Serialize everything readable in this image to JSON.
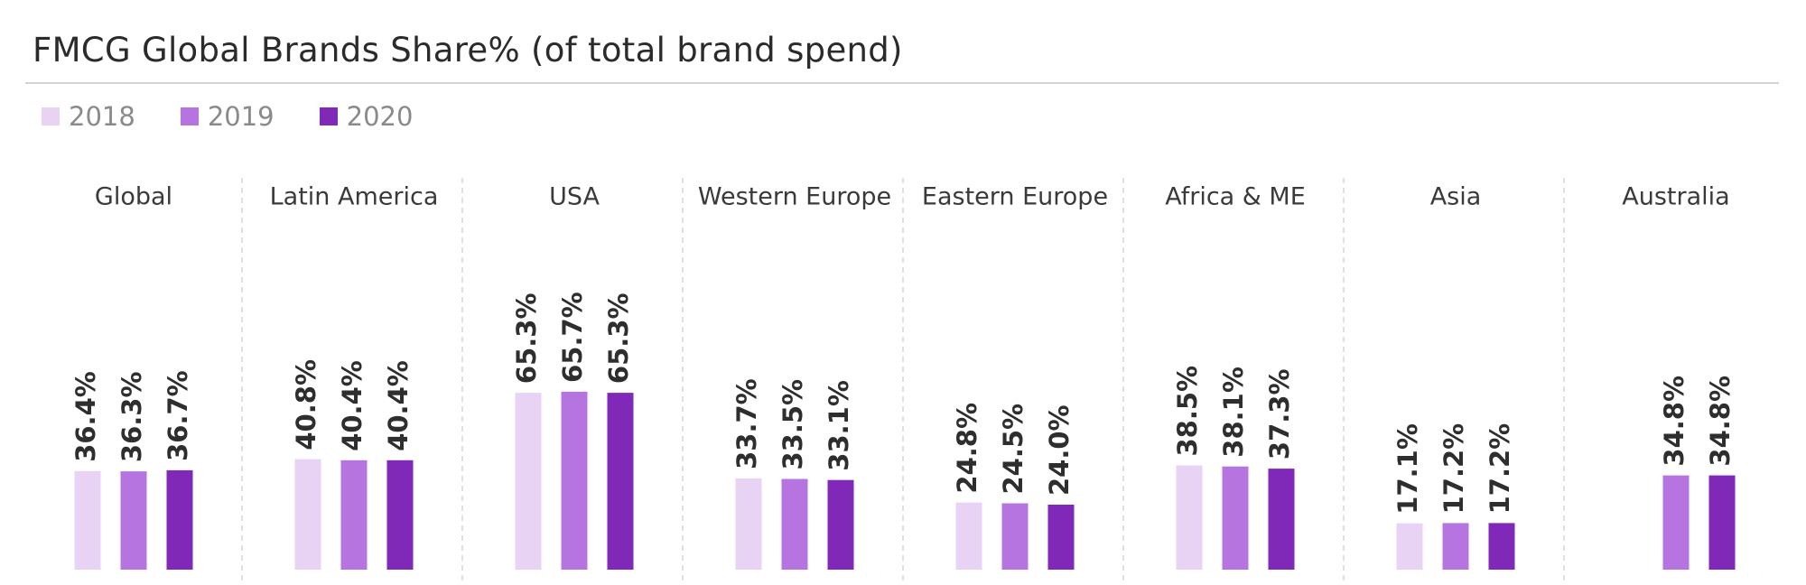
{
  "title": "FMCG Global Brands Share% (of total brand spend)",
  "colors": {
    "2018": "#e8d3f5",
    "2019": "#b574e0",
    "2020": "#8029b8"
  },
  "chart_data": {
    "type": "bar",
    "title": "FMCG Global Brands Share% (of total brand spend)",
    "categories": [
      "Global",
      "Latin America",
      "USA",
      "Western Europe",
      "Eastern Europe",
      "Africa & ME",
      "Asia",
      "Australia"
    ],
    "series": [
      {
        "name": "2018",
        "values": [
          36.4,
          40.8,
          65.3,
          33.7,
          24.8,
          38.5,
          17.1,
          null
        ],
        "labels": [
          "36.4%",
          "40.8%",
          "65.3%",
          "33.7%",
          "24.8%",
          "38.5%",
          "17.1%",
          ""
        ]
      },
      {
        "name": "2019",
        "values": [
          36.3,
          40.4,
          65.7,
          33.5,
          24.5,
          38.1,
          17.2,
          34.8
        ],
        "labels": [
          "36.3%",
          "40.4%",
          "65.7%",
          "33.5%",
          "24.5%",
          "38.1%",
          "17.2%",
          "34.8%"
        ]
      },
      {
        "name": "2020",
        "values": [
          36.7,
          40.4,
          65.3,
          33.1,
          24.0,
          37.3,
          17.2,
          34.8
        ],
        "labels": [
          "36.7%",
          "40.4%",
          "65.3%",
          "33.1%",
          "24.0%",
          "37.3%",
          "17.2%",
          "34.8%"
        ]
      }
    ],
    "ylim": [
      0,
      100
    ],
    "grid": false,
    "legend_position": "top-left"
  }
}
